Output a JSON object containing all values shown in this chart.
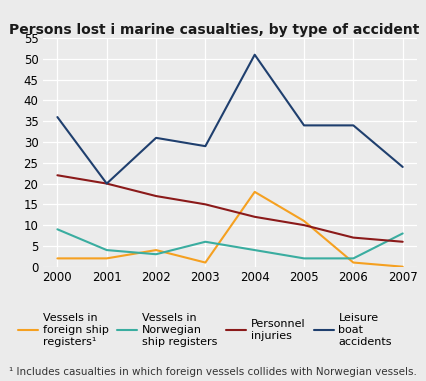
{
  "title": "Persons lost i marine casualties, by type of accident",
  "footnote": "¹ Includes casualties in which foreign vessels collides with Norwegian vessels.",
  "years": [
    2000,
    2001,
    2002,
    2003,
    2004,
    2005,
    2006,
    2007
  ],
  "series_order": [
    "Vessels in\nforeign ship\nregisters¹",
    "Vessels in\nNorwegian\nship registers",
    "Personnel\ninjuries",
    "Leisure\nboat\naccidents"
  ],
  "series": {
    "Vessels in\nforeign ship\nregisters¹": {
      "values": [
        2,
        2,
        4,
        1,
        18,
        11,
        1,
        0
      ],
      "color": "#f5a020",
      "linewidth": 1.5
    },
    "Vessels in\nNorwegian\nship registers": {
      "values": [
        9,
        4,
        3,
        6,
        4,
        2,
        2,
        8
      ],
      "color": "#3aada0",
      "linewidth": 1.5
    },
    "Personnel\ninjuries": {
      "values": [
        22,
        20,
        17,
        15,
        12,
        10,
        7,
        6
      ],
      "color": "#8b1a1a",
      "linewidth": 1.5
    },
    "Leisure\nboat\naccidents": {
      "values": [
        36,
        20,
        31,
        29,
        51,
        34,
        34,
        24
      ],
      "color": "#1f3f6e",
      "linewidth": 1.5
    }
  },
  "ylim": [
    0,
    55
  ],
  "yticks": [
    0,
    5,
    10,
    15,
    20,
    25,
    30,
    35,
    40,
    45,
    50,
    55
  ],
  "background_color": "#ebebeb",
  "grid_color": "#ffffff",
  "title_fontsize": 10,
  "tick_fontsize": 8.5,
  "legend_fontsize": 8
}
